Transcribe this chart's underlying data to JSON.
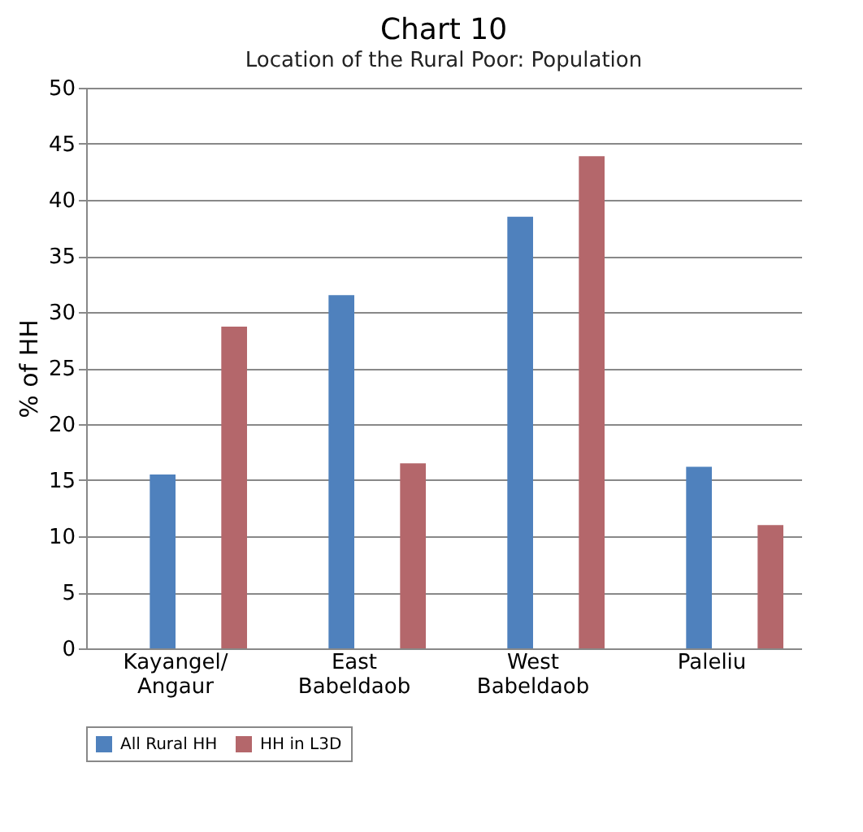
{
  "chart_data": {
    "type": "bar",
    "title": "Chart 10",
    "subtitle": "Location of the Rural Poor: Population",
    "ylabel": "% of HH",
    "categories": [
      "Kayangel/ Angaur",
      "East Babeldaob",
      "West Babeldaob",
      "Paleliu"
    ],
    "series": [
      {
        "name": "All Rural HH",
        "color": "#4f81bd",
        "values": [
          15.5,
          31.5,
          38.5,
          16.2
        ]
      },
      {
        "name": "HH in L3D",
        "color": "#b4676b",
        "values": [
          28.7,
          16.5,
          43.9,
          11.0
        ]
      }
    ],
    "ylim": [
      0,
      50
    ],
    "yticks": [
      0,
      5,
      10,
      15,
      20,
      25,
      30,
      35,
      40,
      45,
      50
    ],
    "grid": "y",
    "legend": "bottom"
  }
}
